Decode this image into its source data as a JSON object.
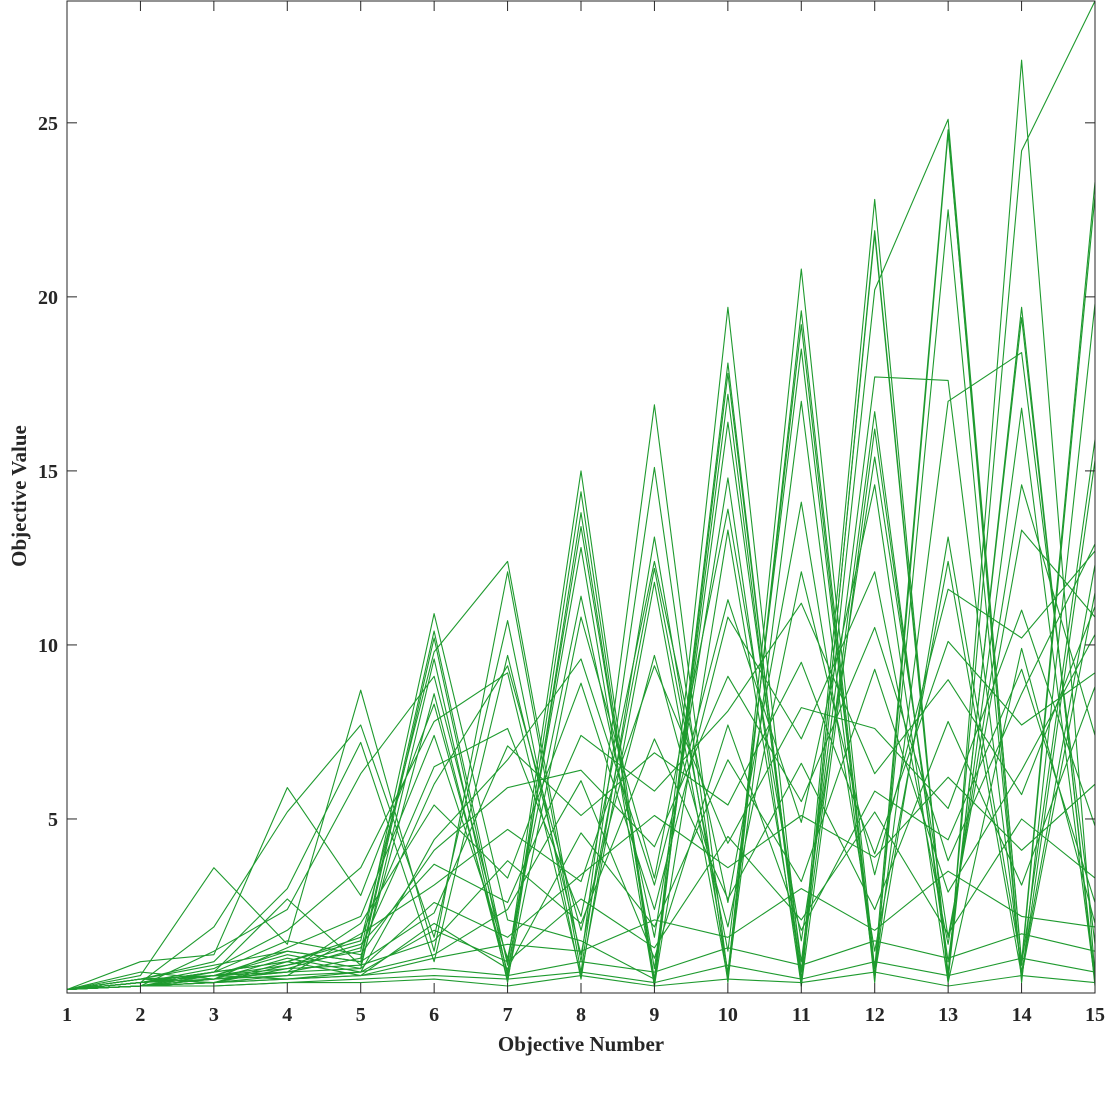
{
  "chart_data": {
    "type": "line",
    "xlabel": "Objective Number",
    "ylabel": "Objective Value",
    "x": [
      1,
      2,
      3,
      4,
      5,
      6,
      7,
      8,
      9,
      10,
      11,
      12,
      13,
      14,
      15
    ],
    "x_ticks": [
      "1",
      "2",
      "3",
      "4",
      "5",
      "6",
      "7",
      "8",
      "9",
      "10",
      "11",
      "12",
      "13",
      "14",
      "15"
    ],
    "y_ticks": [
      "5",
      "10",
      "15",
      "20",
      "25"
    ],
    "y_tick_values": [
      5,
      10,
      15,
      20,
      25
    ],
    "xlim": [
      1,
      15
    ],
    "ylim": [
      0,
      28.5
    ],
    "grid": false,
    "line_color": "#1e9a2e",
    "series": [
      {
        "values": [
          0.1,
          0.3,
          0.5,
          0.8,
          1.2,
          10.9,
          2.1,
          1.5,
          0.4,
          19.7,
          0.6,
          22.8,
          0.3,
          26.8,
          0.5
        ]
      },
      {
        "values": [
          0.1,
          0.2,
          0.4,
          0.6,
          1.0,
          10.4,
          0.8,
          15.0,
          0.3,
          18.1,
          0.2,
          21.9,
          0.5,
          24.2,
          28.5
        ]
      },
      {
        "values": [
          0.1,
          0.4,
          0.8,
          1.2,
          0.9,
          10.2,
          0.5,
          14.4,
          0.2,
          17.8,
          0.4,
          20.2,
          25.1,
          0.8,
          22.9
        ]
      },
      {
        "values": [
          0.1,
          0.3,
          0.6,
          0.9,
          1.5,
          9.8,
          12.4,
          0.9,
          16.9,
          0.5,
          20.8,
          0.7,
          24.8,
          0.3,
          19.8
        ]
      },
      {
        "values": [
          0.1,
          0.2,
          0.5,
          1.1,
          0.7,
          9.6,
          0.3,
          13.8,
          0.4,
          17.2,
          0.3,
          21.8,
          0.4,
          19.7,
          0.2
        ]
      },
      {
        "values": [
          0.1,
          0.5,
          3.6,
          1.4,
          8.7,
          1.2,
          12.1,
          0.6,
          15.1,
          0.3,
          19.6,
          0.5,
          22.5,
          0.4,
          15.3
        ]
      },
      {
        "values": [
          0.1,
          0.9,
          1.1,
          5.9,
          2.8,
          8.3,
          0.6,
          13.4,
          0.7,
          16.4,
          0.9,
          17.7,
          17.6,
          0.6,
          12.3
        ]
      },
      {
        "values": [
          0.1,
          0.3,
          1.9,
          5.2,
          7.7,
          1.6,
          10.7,
          0.4,
          13.1,
          0.6,
          19.2,
          0.3,
          24.7,
          0.9,
          23.3
        ]
      },
      {
        "values": [
          0.1,
          0.4,
          0.9,
          3.0,
          7.2,
          0.9,
          9.7,
          1.1,
          12.2,
          1.2,
          18.5,
          0.5,
          17.0,
          18.4,
          1.4
        ]
      },
      {
        "values": [
          0.1,
          0.2,
          1.2,
          2.4,
          6.3,
          9.1,
          0.9,
          12.8,
          0.2,
          13.3,
          0.6,
          16.7,
          0.6,
          19.4,
          0.4
        ]
      },
      {
        "values": [
          0.1,
          0.3,
          0.7,
          1.8,
          3.6,
          7.8,
          9.2,
          0.5,
          11.8,
          0.4,
          17.0,
          0.5,
          13.1,
          0.8,
          15.9
        ]
      },
      {
        "values": [
          0.1,
          0.6,
          0.4,
          1.3,
          2.2,
          7.4,
          1.0,
          11.4,
          1.6,
          14.8,
          0.2,
          16.2,
          0.9,
          16.8,
          0.3
        ]
      },
      {
        "values": [
          0.1,
          0.2,
          0.3,
          0.9,
          1.6,
          6.5,
          7.6,
          2.2,
          12.4,
          2.6,
          14.1,
          1.2,
          12.4,
          0.5,
          11.5
        ]
      },
      {
        "values": [
          0.1,
          0.3,
          0.6,
          2.7,
          0.8,
          8.6,
          0.4,
          10.8,
          3.3,
          13.9,
          1.5,
          15.4,
          1.6,
          13.3,
          10.8
        ]
      },
      {
        "values": [
          0.1,
          0.4,
          0.5,
          0.7,
          1.3,
          6.0,
          9.4,
          1.8,
          9.7,
          1.9,
          12.1,
          3.4,
          11.6,
          10.2,
          12.7
        ]
      },
      {
        "values": [
          0.1,
          0.2,
          0.4,
          1.0,
          0.6,
          4.4,
          6.7,
          9.6,
          3.1,
          11.3,
          4.9,
          14.6,
          0.3,
          9.9,
          2.0
        ]
      },
      {
        "values": [
          0.1,
          0.3,
          0.5,
          0.6,
          2.0,
          5.4,
          3.3,
          8.9,
          2.4,
          10.8,
          7.3,
          12.1,
          1.4,
          14.6,
          7.4
        ]
      },
      {
        "values": [
          0.1,
          0.2,
          0.6,
          1.5,
          1.1,
          4.1,
          5.9,
          6.4,
          4.2,
          9.1,
          5.5,
          10.5,
          3.8,
          8.6,
          12.9
        ]
      },
      {
        "values": [
          0.1,
          0.4,
          0.3,
          0.8,
          1.4,
          3.7,
          2.6,
          7.4,
          5.8,
          8.1,
          11.2,
          6.3,
          9.0,
          5.7,
          11.1
        ]
      },
      {
        "values": [
          0.1,
          0.3,
          0.5,
          1.2,
          0.9,
          2.3,
          7.1,
          5.1,
          6.9,
          5.4,
          9.5,
          4.0,
          10.1,
          7.7,
          9.2
        ]
      },
      {
        "values": [
          0.1,
          0.2,
          0.4,
          0.5,
          1.7,
          3.1,
          4.7,
          3.2,
          9.4,
          4.3,
          8.2,
          7.6,
          5.3,
          11.0,
          4.8
        ]
      },
      {
        "values": [
          0.1,
          0.3,
          0.6,
          0.9,
          0.5,
          2.0,
          0.7,
          4.6,
          1.9,
          6.7,
          3.2,
          9.3,
          2.9,
          6.4,
          10.3
        ]
      },
      {
        "values": [
          0.1,
          0.2,
          0.3,
          0.7,
          0.8,
          1.5,
          3.8,
          2.0,
          7.3,
          2.7,
          6.6,
          2.4,
          7.8,
          3.1,
          8.8
        ]
      },
      {
        "values": [
          0.1,
          0.2,
          0.5,
          0.4,
          0.6,
          1.1,
          2.4,
          6.1,
          1.0,
          7.7,
          1.8,
          5.8,
          4.4,
          9.3,
          2.6
        ]
      },
      {
        "values": [
          0.1,
          0.3,
          0.4,
          0.6,
          0.7,
          2.6,
          1.6,
          3.4,
          5.1,
          3.6,
          5.1,
          3.9,
          6.2,
          4.1,
          6.0
        ]
      },
      {
        "values": [
          0.1,
          0.2,
          0.3,
          0.5,
          0.6,
          1.8,
          0.9,
          2.7,
          1.3,
          4.5,
          2.1,
          5.2,
          1.7,
          5.0,
          3.3
        ]
      },
      {
        "values": [
          0.1,
          0.2,
          0.3,
          0.4,
          0.5,
          1.0,
          1.4,
          1.2,
          2.1,
          1.6,
          3.0,
          1.8,
          3.5,
          2.2,
          1.9
        ]
      },
      {
        "values": [
          0.1,
          0.2,
          0.3,
          0.4,
          0.5,
          0.7,
          0.5,
          0.9,
          0.6,
          1.3,
          0.8,
          1.5,
          1.0,
          1.7,
          1.2
        ]
      },
      {
        "values": [
          0.1,
          0.2,
          0.2,
          0.3,
          0.4,
          0.5,
          0.4,
          0.6,
          0.3,
          0.8,
          0.4,
          0.9,
          0.5,
          1.0,
          0.6
        ]
      },
      {
        "values": [
          0.1,
          0.2,
          0.2,
          0.3,
          0.3,
          0.4,
          0.2,
          0.5,
          0.2,
          0.4,
          0.3,
          0.6,
          0.2,
          0.5,
          0.3
        ]
      }
    ]
  }
}
